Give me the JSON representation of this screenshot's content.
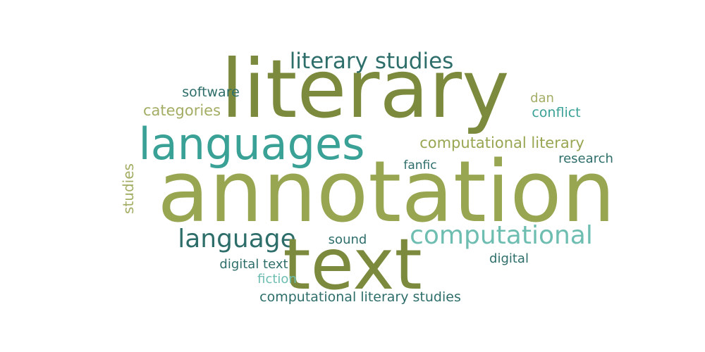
{
  "word_cloud": {
    "colors": {
      "olive_dark": "#7b8a3c",
      "olive": "#98a652",
      "olive_light": "#a3ad64",
      "teal": "#3aa196",
      "teal_light": "#6dbdb1",
      "teal_dark": "#2e6e6a"
    },
    "words": [
      {
        "text": "literary",
        "color": "#7b8a3c",
        "rotated": false
      },
      {
        "text": "literary studies",
        "color": "#2e6e6a",
        "rotated": false
      },
      {
        "text": "software",
        "color": "#2e6e6a",
        "rotated": false
      },
      {
        "text": "categories",
        "color": "#a3ad64",
        "rotated": false
      },
      {
        "text": "dan",
        "color": "#a3ad64",
        "rotated": false
      },
      {
        "text": "conflict",
        "color": "#3aa196",
        "rotated": false
      },
      {
        "text": "languages",
        "color": "#3aa196",
        "rotated": false
      },
      {
        "text": "computational literary",
        "color": "#98a652",
        "rotated": false
      },
      {
        "text": "research",
        "color": "#2e6e6a",
        "rotated": false
      },
      {
        "text": "fanfic",
        "color": "#2e6e6a",
        "rotated": false
      },
      {
        "text": "studies",
        "color": "#a3ad64",
        "rotated": true
      },
      {
        "text": "annotation",
        "color": "#98a652",
        "rotated": false
      },
      {
        "text": "language",
        "color": "#2e6e6a",
        "rotated": false
      },
      {
        "text": "sound",
        "color": "#2e6e6a",
        "rotated": false
      },
      {
        "text": "computational",
        "color": "#6dbdb1",
        "rotated": false
      },
      {
        "text": "text",
        "color": "#7b8a3c",
        "rotated": false
      },
      {
        "text": "digital",
        "color": "#2e6e6a",
        "rotated": false
      },
      {
        "text": "digital text",
        "color": "#2e6e6a",
        "rotated": false
      },
      {
        "text": "fiction",
        "color": "#6dbdb1",
        "rotated": false
      },
      {
        "text": "computational literary studies",
        "color": "#2e6e6a",
        "rotated": false
      }
    ]
  }
}
